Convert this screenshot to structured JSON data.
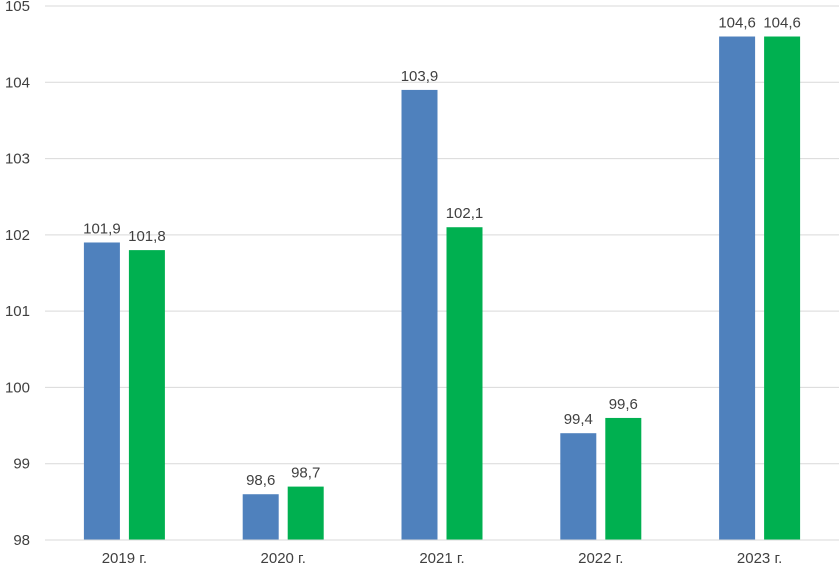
{
  "chart_data": {
    "type": "bar",
    "categories": [
      "2019 г.",
      "2020 г.",
      "2021 г.",
      "2022 г.",
      "2023 г."
    ],
    "series": [
      {
        "color": "#4f81bd",
        "values": [
          101.9,
          98.6,
          103.9,
          99.4,
          104.6
        ],
        "labels": [
          "101,9",
          "98,6",
          "103,9",
          "99,4",
          "104,6"
        ]
      },
      {
        "color": "#00b050",
        "values": [
          101.8,
          98.7,
          102.1,
          99.6,
          104.6
        ],
        "labels": [
          "101,8",
          "98,7",
          "102,1",
          "99,6",
          "104,6"
        ]
      }
    ],
    "ylim": [
      98,
      105
    ],
    "yticks": [
      98,
      99,
      100,
      101,
      102,
      103,
      104,
      105
    ],
    "ytick_labels": [
      "98",
      "99",
      "100",
      "101",
      "102",
      "103",
      "104",
      "105"
    ],
    "grid": true,
    "title": "",
    "xlabel": "",
    "ylabel": ""
  }
}
